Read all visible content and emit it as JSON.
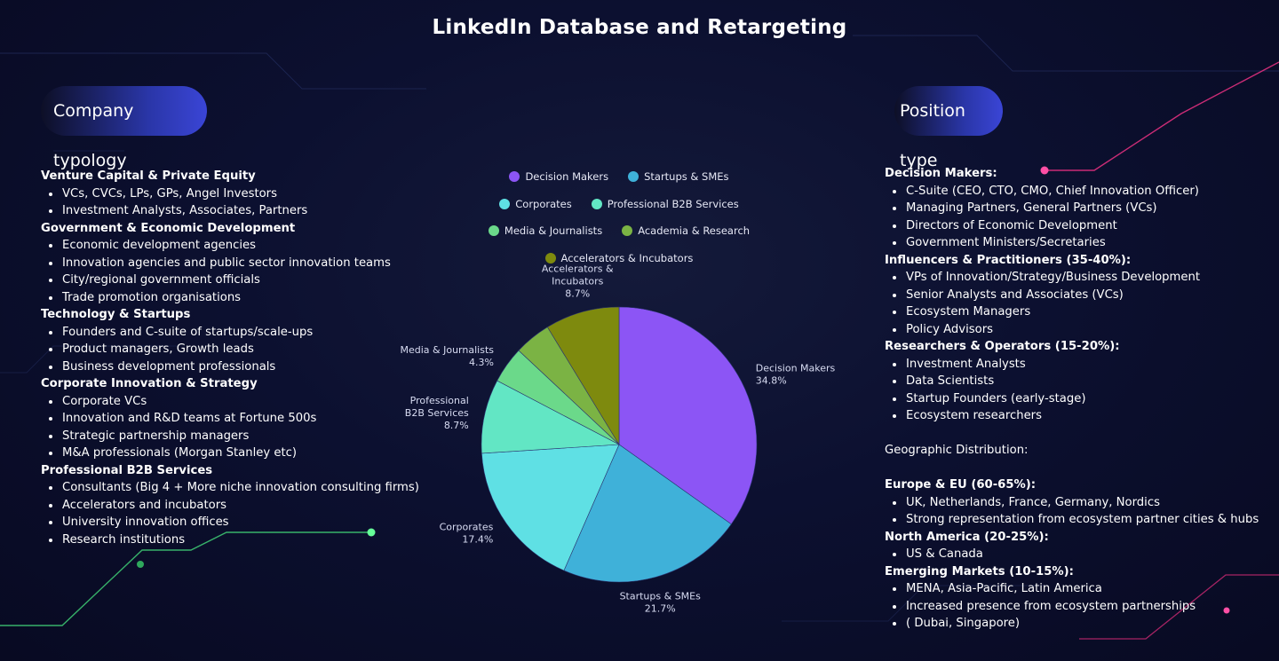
{
  "title": "LinkedIn Database and Retargeting",
  "left_panel": {
    "pill_label": "Company typology",
    "sections": [
      {
        "heading": "Venture Capital & Private Equity",
        "items": [
          "VCs, CVCs,  LPs, GPs, Angel Investors",
          "Investment Analysts, Associates, Partners"
        ]
      },
      {
        "heading": "Government & Economic Development",
        "items": [
          "Economic development agencies",
          "Innovation agencies and public sector innovation teams",
          "City/regional government officials",
          "Trade promotion organisations"
        ]
      },
      {
        "heading": "Technology & Startups",
        "items": [
          "Founders and C-suite of startups/scale-ups",
          "Product managers, Growth leads",
          "Business development professionals"
        ]
      },
      {
        "heading": "Corporate Innovation & Strategy",
        "items": [
          "Corporate VCs",
          "Innovation and R&D teams at Fortune 500s",
          "Strategic partnership managers",
          "M&A professionals (Morgan Stanley etc)"
        ]
      },
      {
        "heading": "Professional  B2B Services",
        "items": [
          "Consultants  (Big 4 + More niche innovation consulting firms)",
          "Accelerators and incubators",
          "University innovation offices",
          "Research institutions"
        ]
      }
    ]
  },
  "right_panel": {
    "pill_label": "Position type",
    "position_sections": [
      {
        "heading": "Decision Makers:",
        "items": [
          "C-Suite (CEO, CTO, CMO, Chief Innovation Officer)",
          "Managing Partners, General Partners (VCs)",
          "Directors of Economic Development",
          "Government Ministers/Secretaries"
        ]
      },
      {
        "heading": "Influencers & Practitioners (35-40%):",
        "items": [
          "VPs of Innovation/Strategy/Business Development",
          "Senior Analysts and Associates (VCs)",
          "Ecosystem Managers",
          "Policy Advisors"
        ]
      },
      {
        "heading": "Researchers & Operators (15-20%):",
        "items": [
          "Investment Analysts",
          "Data Scientists",
          "Startup Founders (early-stage)",
          "Ecosystem researchers"
        ]
      }
    ],
    "geo_title": "Geographic Distribution:",
    "geo_sections": [
      {
        "heading": "Europe & EU (60-65%):",
        "items": [
          "UK, Netherlands, France, Germany, Nordics",
          "Strong representation from ecosystem partner cities &  hubs"
        ]
      },
      {
        "heading": "North America (20-25%):",
        "items": [
          "US & Canada"
        ]
      },
      {
        "heading": "Emerging Markets (10-15%):",
        "items": [
          "MENA, Asia-Pacific, Latin America",
          "Increased presence from ecosystem partnerships",
          "( Dubai, Singapore)"
        ]
      }
    ]
  },
  "chart_data": {
    "type": "pie",
    "slices": [
      {
        "label": "Decision Makers",
        "value": 34.8,
        "pct_label": "34.8%",
        "color": "#8c55f5"
      },
      {
        "label": "Startups & SMEs",
        "value": 21.7,
        "pct_label": "21.7%",
        "color": "#3fb1d9"
      },
      {
        "label": "Corporates",
        "value": 17.4,
        "pct_label": "17.4%",
        "color": "#5fe0e4"
      },
      {
        "label": "Professional B2B Services",
        "value": 8.7,
        "pct_label": "8.7%",
        "color": "#62e6c4"
      },
      {
        "label": "Media & Journalists",
        "value": 4.3,
        "pct_label": "4.3%",
        "color": "#6bd98a"
      },
      {
        "label": "Academia & Research",
        "value": 4.3,
        "pct_label": "",
        "color": "#7bb344"
      },
      {
        "label": "Accelerators & Incubators",
        "value": 8.7,
        "pct_label": "8.7%",
        "color": "#7e8a0e"
      }
    ],
    "legend_position": "top"
  }
}
